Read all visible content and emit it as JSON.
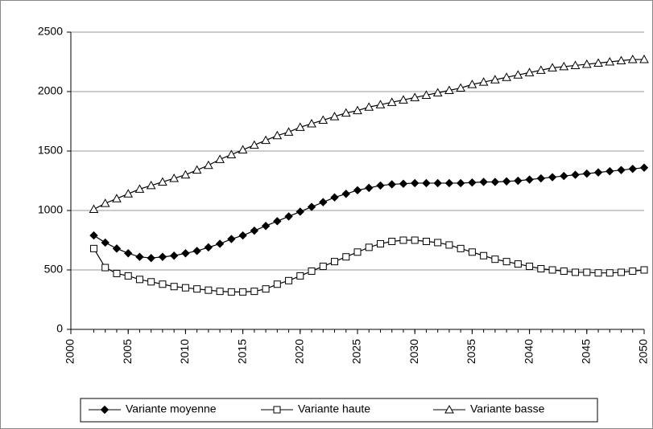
{
  "chart_data": {
    "type": "line",
    "x": [
      2002,
      2003,
      2004,
      2005,
      2006,
      2007,
      2008,
      2009,
      2010,
      2011,
      2012,
      2013,
      2014,
      2015,
      2016,
      2017,
      2018,
      2019,
      2020,
      2021,
      2022,
      2023,
      2024,
      2025,
      2026,
      2027,
      2028,
      2029,
      2030,
      2031,
      2032,
      2033,
      2034,
      2035,
      2036,
      2037,
      2038,
      2039,
      2040,
      2041,
      2042,
      2043,
      2044,
      2045,
      2046,
      2047,
      2048,
      2049,
      2050
    ],
    "series": [
      {
        "name": "Variante moyenne",
        "color": "#000000",
        "marker": "diamond",
        "values": [
          790,
          730,
          680,
          640,
          610,
          600,
          610,
          620,
          640,
          660,
          690,
          720,
          760,
          790,
          830,
          870,
          910,
          950,
          990,
          1030,
          1070,
          1110,
          1140,
          1170,
          1190,
          1210,
          1220,
          1225,
          1230,
          1230,
          1230,
          1230,
          1230,
          1235,
          1240,
          1240,
          1245,
          1250,
          1260,
          1270,
          1280,
          1290,
          1300,
          1310,
          1320,
          1330,
          1340,
          1350,
          1360
        ]
      },
      {
        "name": "Variante haute",
        "color": "#000000",
        "marker": "square",
        "values": [
          680,
          520,
          470,
          450,
          420,
          400,
          380,
          360,
          350,
          340,
          330,
          320,
          315,
          315,
          320,
          340,
          380,
          410,
          450,
          490,
          530,
          570,
          610,
          650,
          690,
          720,
          740,
          750,
          750,
          740,
          730,
          710,
          680,
          650,
          620,
          590,
          570,
          550,
          530,
          510,
          500,
          490,
          480,
          480,
          475,
          475,
          480,
          490,
          500
        ]
      },
      {
        "name": "Variante basse",
        "color": "#000000",
        "marker": "triangle",
        "values": [
          1010,
          1060,
          1100,
          1140,
          1180,
          1210,
          1240,
          1270,
          1300,
          1340,
          1380,
          1430,
          1470,
          1510,
          1550,
          1590,
          1630,
          1660,
          1700,
          1730,
          1760,
          1790,
          1820,
          1840,
          1870,
          1890,
          1910,
          1930,
          1950,
          1970,
          1990,
          2010,
          2030,
          2060,
          2080,
          2100,
          2120,
          2140,
          2160,
          2180,
          2200,
          2210,
          2220,
          2230,
          2240,
          2250,
          2260,
          2270,
          2270
        ]
      }
    ],
    "xlim": [
      2000,
      2050
    ],
    "xticks": [
      2000,
      2005,
      2010,
      2015,
      2020,
      2025,
      2030,
      2035,
      2040,
      2045,
      2050
    ],
    "ylim": [
      0,
      2500
    ],
    "yticks": [
      0,
      500,
      1000,
      1500,
      2000,
      2500
    ],
    "grid": true,
    "legend": "bottom"
  }
}
